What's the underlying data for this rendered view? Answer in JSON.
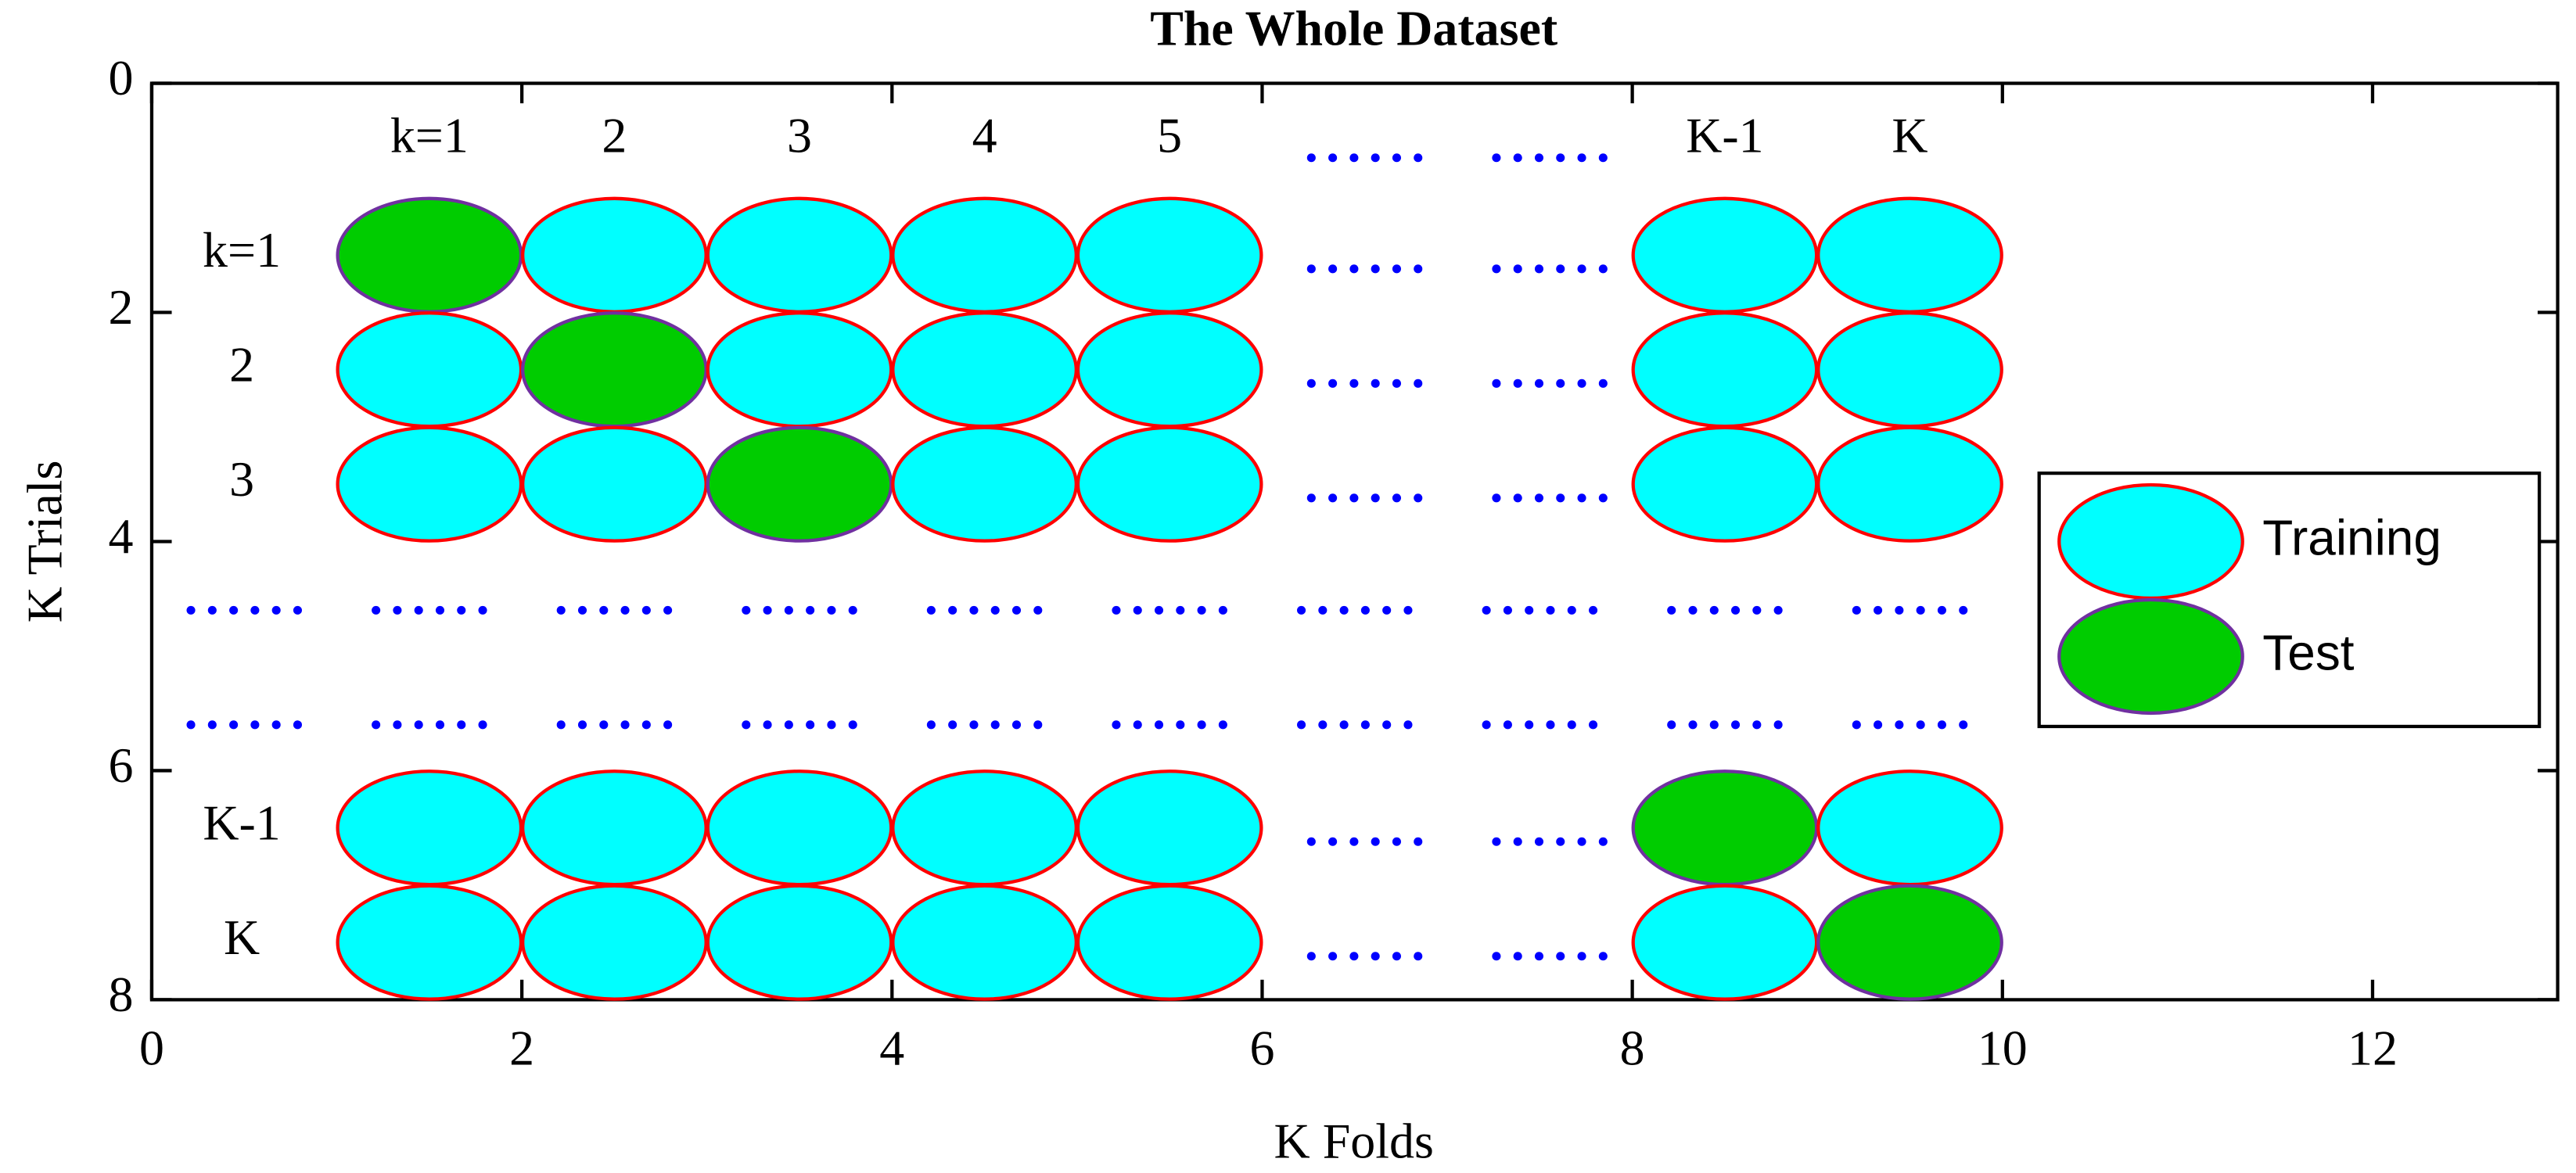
{
  "title": "The Whole Dataset",
  "x_axis": {
    "label": "K Folds",
    "ticks": [
      0,
      2,
      4,
      6,
      8,
      10,
      12
    ]
  },
  "y_axis": {
    "label": "K Trials",
    "ticks": [
      0,
      2,
      4,
      6,
      8
    ]
  },
  "column_labels": [
    "k=1",
    "2",
    "3",
    "4",
    "5",
    "K-1",
    "K"
  ],
  "row_labels": [
    "k=1",
    "2",
    "3",
    "K-1",
    "K"
  ],
  "legend": [
    "Training",
    "Test"
  ]
}
